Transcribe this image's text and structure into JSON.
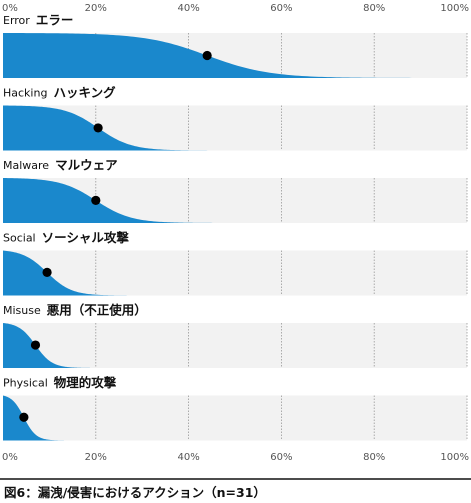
{
  "chart_data": {
    "type": "area",
    "x_axis": {
      "ticks": [
        0,
        20,
        40,
        60,
        80,
        100
      ],
      "tick_labels": [
        "0%",
        "20%",
        "40%",
        "60%",
        "80%",
        "100%"
      ],
      "range": [
        0,
        100
      ]
    },
    "grid": true,
    "colors": {
      "area": "#1a88cc",
      "panel_background": "#f2f2f2",
      "marker": "#000000",
      "grid": "#999999"
    },
    "panels": [
      {
        "label": "Error",
        "label_ja": "エラー",
        "marker": 44,
        "spread": 28
      },
      {
        "label": "Hacking",
        "label_ja": "ハッキング",
        "marker": 20.5,
        "spread": 15
      },
      {
        "label": "Malware",
        "label_ja": "マルウェア",
        "marker": 20,
        "spread": 16
      },
      {
        "label": "Social",
        "label_ja": "ソーシャル攻撃",
        "marker": 9.5,
        "spread": 11
      },
      {
        "label": "Misuse",
        "label_ja": "悪用（不正使用）",
        "marker": 7,
        "spread": 7.5
      },
      {
        "label": "Physical",
        "label_ja": "物理的攻撃",
        "marker": 4.5,
        "spread": 5.5
      }
    ],
    "caption": "図6：漏洩/侵害におけるアクション（n=31）"
  }
}
